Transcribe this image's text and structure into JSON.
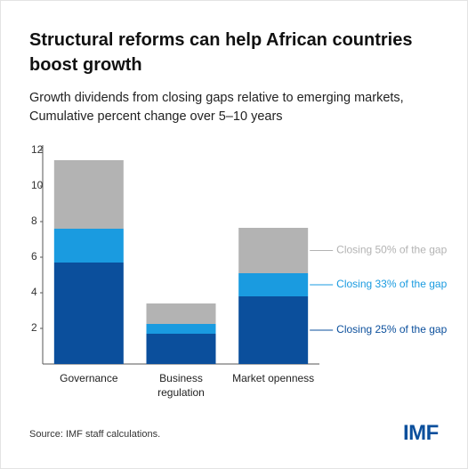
{
  "chart_data": {
    "type": "stacked_bar",
    "title": [
      "Structural reforms can help African countries",
      "boost growth"
    ],
    "subtitle": [
      "Growth dividends from closing gaps relative to emerging markets,",
      "Cumulative percent change over 5–10 years"
    ],
    "categories": [
      "Governance",
      "Business regulation",
      "Market openness"
    ],
    "series": [
      {
        "name": "Closing 25% of the gap",
        "color": "#0b4f9c",
        "values": [
          5.7,
          1.7,
          3.8
        ]
      },
      {
        "name": "Closing 33% of the gap",
        "color": "#1a9be0",
        "values": [
          1.9,
          0.55,
          1.3
        ]
      },
      {
        "name": "Closing 50% of the gap",
        "color": "#b3b3b3",
        "values": [
          3.85,
          1.15,
          2.55
        ]
      }
    ],
    "ylim": [
      0,
      12
    ],
    "yticks": [
      2,
      4,
      6,
      8,
      10,
      12
    ],
    "source": "Source: IMF staff calculations.",
    "logo": "IMF"
  }
}
